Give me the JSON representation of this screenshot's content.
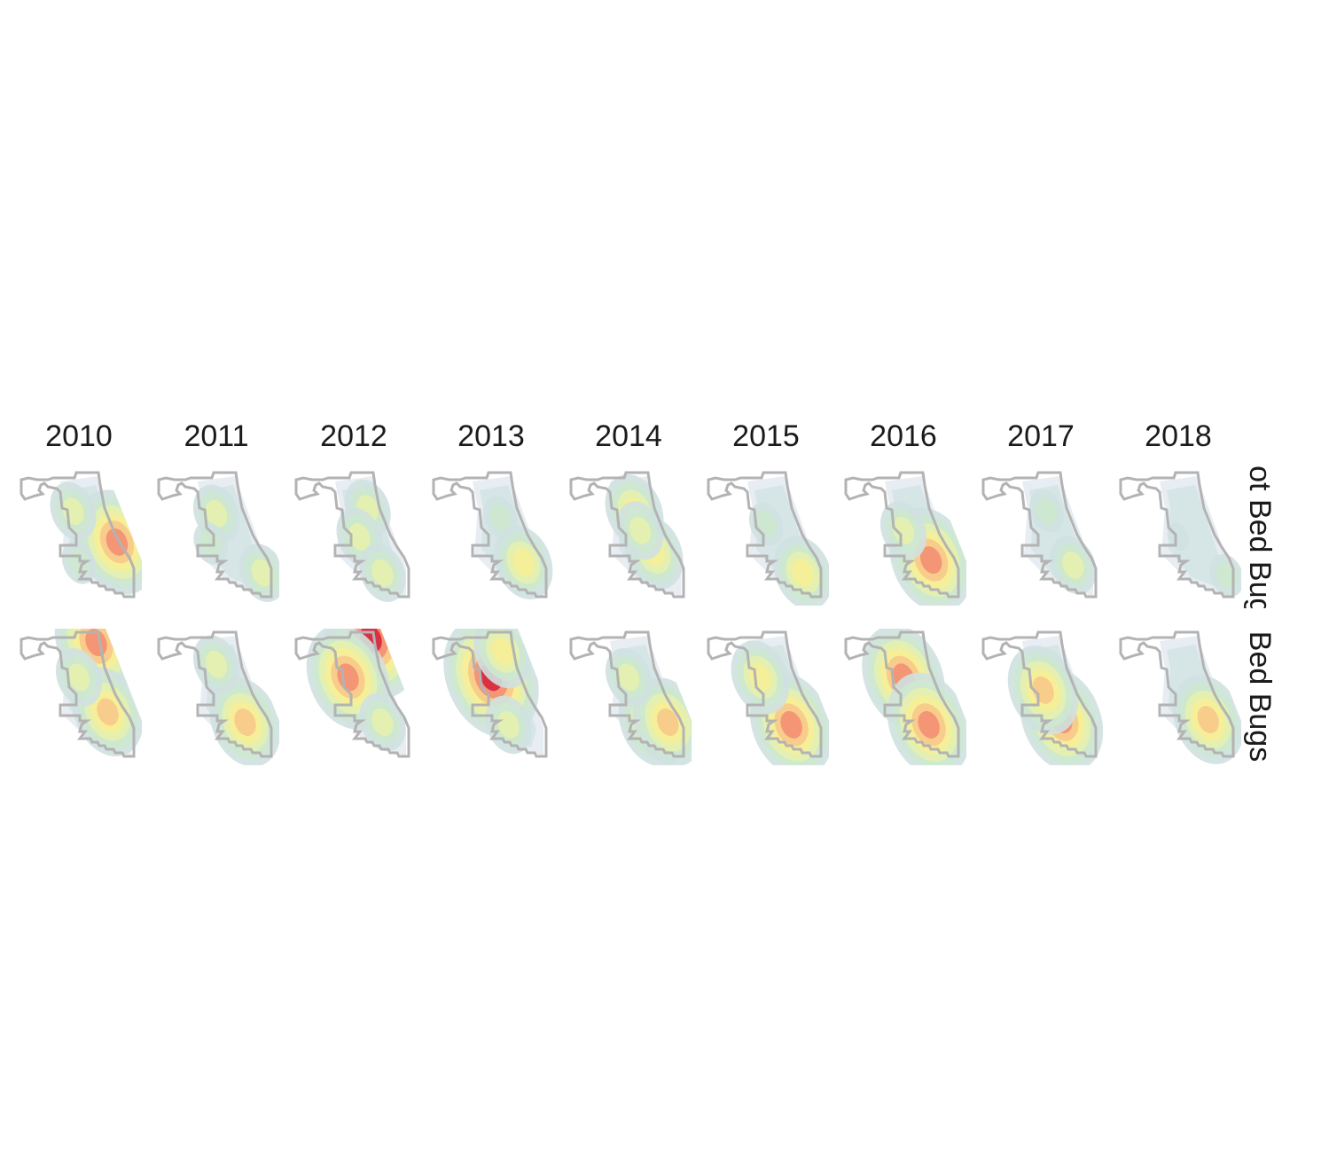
{
  "chart_data": {
    "type": "heatmap",
    "title": "",
    "columns": [
      "2010",
      "2011",
      "2012",
      "2013",
      "2014",
      "2015",
      "2016",
      "2017",
      "2018"
    ],
    "rows": [
      "Not Bed Bugs",
      "Bed Bugs"
    ],
    "palette": [
      "#ffffff",
      "#e3eaf0",
      "#cfe1e0",
      "#cde8cf",
      "#e6f1ad",
      "#f7ee97",
      "#f8c98a",
      "#f38f73",
      "#d7263d"
    ],
    "outline_color": "#b3b3b3",
    "density_hotspots": [
      [
        [
          {
            "lat": 0.54,
            "lon": 0.83,
            "level": 7
          },
          {
            "lat": 0.3,
            "lon": 0.45,
            "level": 4
          },
          {
            "lat": 0.7,
            "lon": 0.5,
            "level": 3
          }
        ],
        [
          {
            "lat": 0.32,
            "lon": 0.5,
            "level": 4
          },
          {
            "lat": 0.78,
            "lon": 0.9,
            "level": 4
          },
          {
            "lat": 0.55,
            "lon": 0.45,
            "level": 3
          }
        ],
        [
          {
            "lat": 0.28,
            "lon": 0.62,
            "level": 4
          },
          {
            "lat": 0.5,
            "lon": 0.55,
            "level": 4
          },
          {
            "lat": 0.78,
            "lon": 0.75,
            "level": 4
          }
        ],
        [
          {
            "lat": 0.35,
            "lon": 0.58,
            "level": 3
          },
          {
            "lat": 0.7,
            "lon": 0.78,
            "level": 5
          }
        ],
        [
          {
            "lat": 0.3,
            "lon": 0.55,
            "level": 5
          },
          {
            "lat": 0.62,
            "lon": 0.72,
            "level": 5
          },
          {
            "lat": 0.45,
            "lon": 0.6,
            "level": 4
          }
        ],
        [
          {
            "lat": 0.78,
            "lon": 0.82,
            "level": 5
          },
          {
            "lat": 0.4,
            "lon": 0.5,
            "level": 3
          }
        ],
        [
          {
            "lat": 0.68,
            "lon": 0.74,
            "level": 7
          },
          {
            "lat": 0.45,
            "lon": 0.5,
            "level": 4
          }
        ],
        [
          {
            "lat": 0.72,
            "lon": 0.78,
            "level": 4
          },
          {
            "lat": 0.3,
            "lon": 0.55,
            "level": 3
          }
        ],
        [
          {
            "lat": 0.8,
            "lon": 0.92,
            "level": 3
          },
          {
            "lat": 0.5,
            "lon": 0.5,
            "level": 2
          }
        ]
      ],
      [
        [
          {
            "lat": 0.08,
            "lon": 0.65,
            "level": 7
          },
          {
            "lat": 0.62,
            "lon": 0.75,
            "level": 6
          },
          {
            "lat": 0.35,
            "lon": 0.5,
            "level": 4
          }
        ],
        [
          {
            "lat": 0.7,
            "lon": 0.75,
            "level": 6
          },
          {
            "lat": 0.25,
            "lon": 0.5,
            "level": 4
          }
        ],
        [
          {
            "lat": 0.05,
            "lon": 0.65,
            "level": 8
          },
          {
            "lat": 0.35,
            "lon": 0.45,
            "level": 7
          },
          {
            "lat": 0.7,
            "lon": 0.75,
            "level": 4
          }
        ],
        [
          {
            "lat": 0.35,
            "lon": 0.5,
            "level": 8
          },
          {
            "lat": 0.15,
            "lon": 0.6,
            "level": 5
          },
          {
            "lat": 0.72,
            "lon": 0.65,
            "level": 4
          }
        ],
        [
          {
            "lat": 0.7,
            "lon": 0.72,
            "level": 6
          },
          {
            "lat": 0.7,
            "lon": 0.84,
            "level": 6
          },
          {
            "lat": 0.35,
            "lon": 0.5,
            "level": 4
          }
        ],
        [
          {
            "lat": 0.72,
            "lon": 0.72,
            "level": 7
          },
          {
            "lat": 0.35,
            "lon": 0.45,
            "level": 5
          }
        ],
        [
          {
            "lat": 0.35,
            "lon": 0.5,
            "level": 7
          },
          {
            "lat": 0.72,
            "lon": 0.72,
            "level": 7
          }
        ],
        [
          {
            "lat": 0.68,
            "lon": 0.68,
            "level": 7
          },
          {
            "lat": 0.45,
            "lon": 0.52,
            "level": 6
          }
        ],
        [
          {
            "lat": 0.68,
            "lon": 0.76,
            "level": 6
          }
        ]
      ]
    ]
  }
}
